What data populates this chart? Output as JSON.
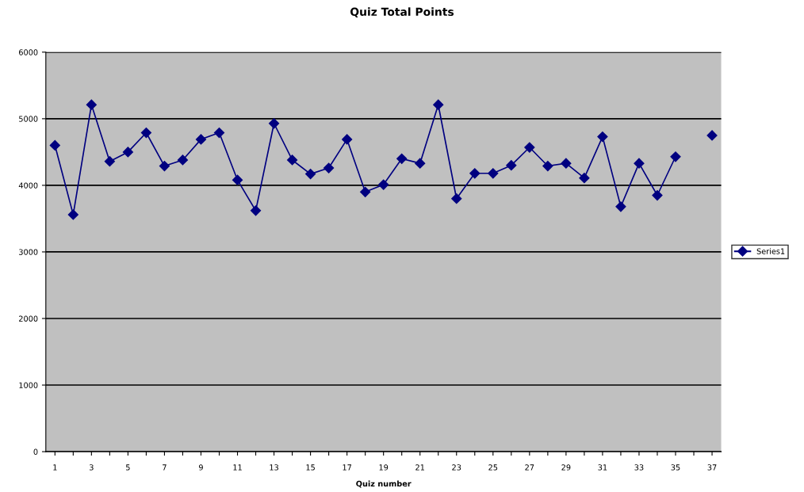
{
  "chart_data": {
    "type": "line",
    "title": "Quiz Total Points",
    "xlabel": "Quiz number",
    "categories": [
      "1",
      null,
      "3",
      null,
      "5",
      null,
      "7",
      null,
      "9",
      null,
      "11",
      null,
      "13",
      null,
      "15",
      null,
      "17",
      null,
      "19",
      null,
      "21",
      null,
      "23",
      null,
      "25",
      null,
      "27",
      null,
      "29",
      null,
      "31",
      null,
      "33",
      null,
      "35",
      null,
      "37"
    ],
    "series": [
      {
        "name": "Series1",
        "color": "#000080",
        "values": [
          4600,
          3560,
          5210,
          4360,
          4500,
          4790,
          4290,
          4380,
          4690,
          4790,
          4080,
          3620,
          4930,
          4380,
          4170,
          4260,
          4690,
          3900,
          4010,
          4400,
          4330,
          5210,
          3800,
          4180,
          4180,
          4300,
          4570,
          4290,
          4330,
          4110,
          4730,
          3680,
          4330,
          3850,
          4430,
          null,
          4750
        ]
      }
    ],
    "ylim": [
      0,
      6000
    ],
    "yticks": [
      0,
      1000,
      2000,
      3000,
      4000,
      5000,
      6000
    ],
    "grid": "y",
    "legend": "right",
    "marker": "diamond",
    "line_style": "solid"
  }
}
